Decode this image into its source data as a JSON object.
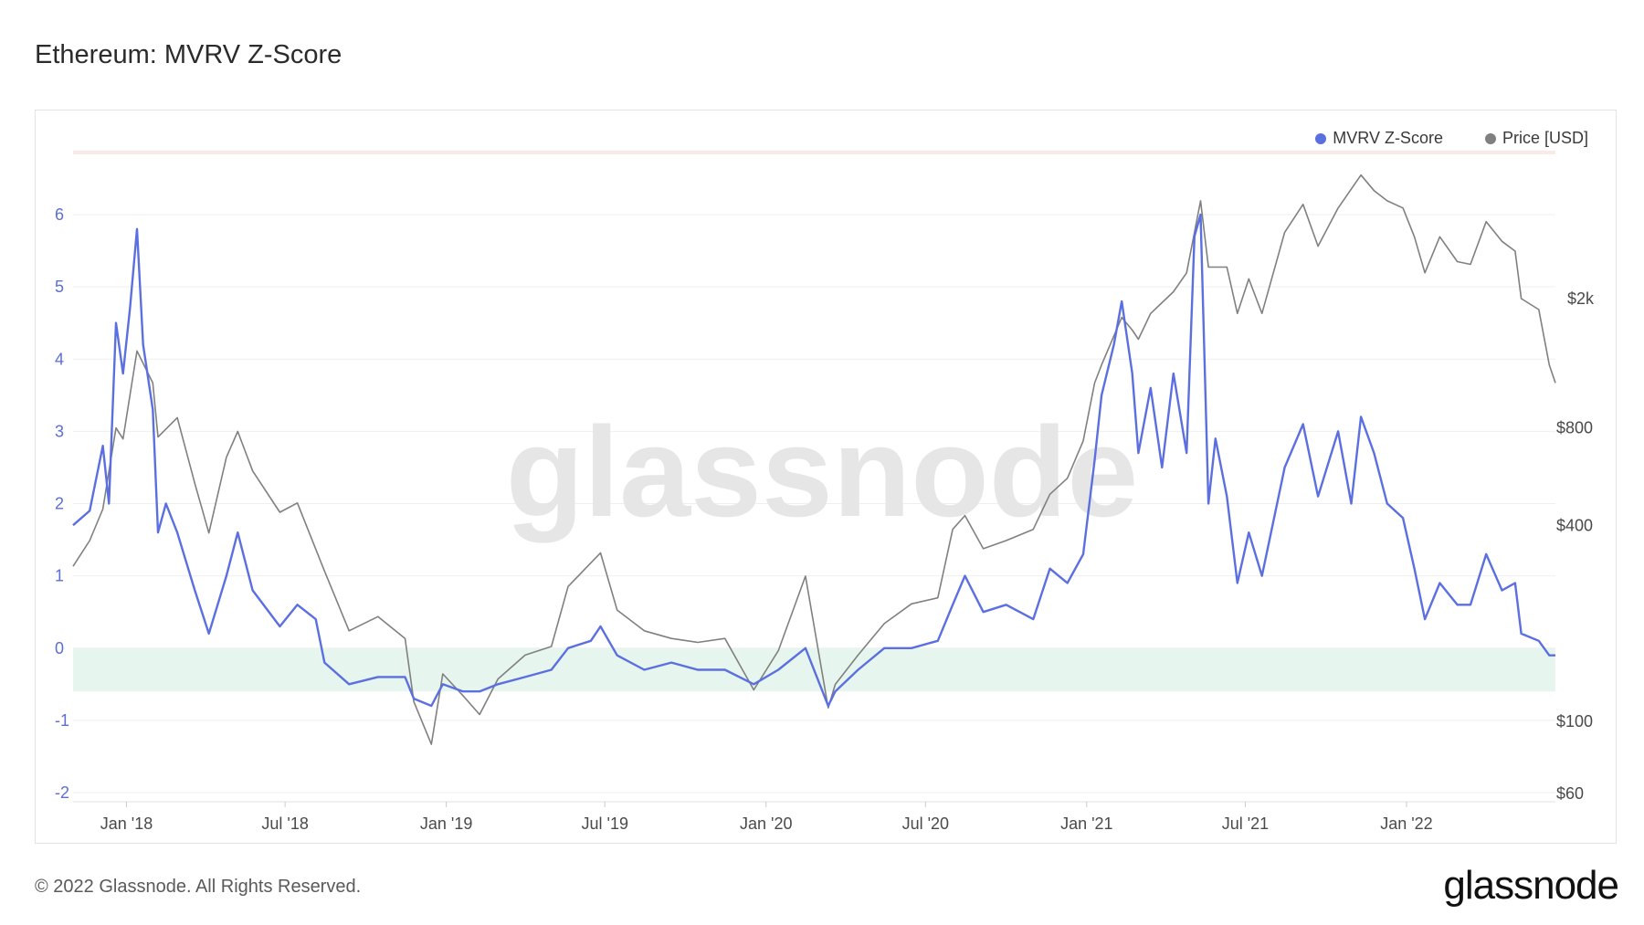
{
  "title": "Ethereum: MVRV Z-Score",
  "legend": {
    "mvrv_label": "MVRV Z-Score",
    "price_label": "Price [USD]"
  },
  "watermark": "glassnode",
  "footer": "© 2022 Glassnode. All Rights Reserved.",
  "brand": "glassnode",
  "colors": {
    "mvrv": "#5b6fe0",
    "price": "#808080",
    "green_band": "#e6f6ee",
    "red_band": "#fde8e8",
    "grid": "#efefef"
  },
  "chart_data": {
    "type": "line",
    "x_ticks": [
      "Jan '18",
      "Jul '18",
      "Jan '19",
      "Jul '19",
      "Jan '20",
      "Jul '20",
      "Jan '21",
      "Jul '21",
      "Jan '22"
    ],
    "y_left_ticks": [
      "6",
      "5",
      "4",
      "3",
      "2",
      "1",
      "0",
      "-1",
      "-2"
    ],
    "y_left_range": [
      -2,
      6
    ],
    "y_right_ticks": [
      "$2k",
      "$800",
      "$400",
      "$100",
      "$60"
    ],
    "y_right_scale": "log",
    "grid": true,
    "legend_position": "top-right",
    "green_band": [
      -0.6,
      0
    ],
    "x_range": [
      "2017-11-01",
      "2022-06-20"
    ],
    "series": [
      {
        "name": "MVRV Z-Score",
        "axis": "left",
        "points": [
          [
            "2017-11-01",
            1.7
          ],
          [
            "2017-11-20",
            1.9
          ],
          [
            "2017-12-05",
            2.8
          ],
          [
            "2017-12-12",
            2.0
          ],
          [
            "2017-12-20",
            4.5
          ],
          [
            "2017-12-28",
            3.8
          ],
          [
            "2018-01-05",
            4.7
          ],
          [
            "2018-01-13",
            5.8
          ],
          [
            "2018-01-20",
            4.2
          ],
          [
            "2018-01-31",
            3.3
          ],
          [
            "2018-02-06",
            1.6
          ],
          [
            "2018-02-15",
            2.0
          ],
          [
            "2018-02-28",
            1.6
          ],
          [
            "2018-03-20",
            0.8
          ],
          [
            "2018-04-05",
            0.2
          ],
          [
            "2018-04-25",
            1.0
          ],
          [
            "2018-05-08",
            1.6
          ],
          [
            "2018-05-25",
            0.8
          ],
          [
            "2018-06-25",
            0.3
          ],
          [
            "2018-07-15",
            0.6
          ],
          [
            "2018-08-05",
            0.4
          ],
          [
            "2018-08-15",
            -0.2
          ],
          [
            "2018-09-12",
            -0.5
          ],
          [
            "2018-10-15",
            -0.4
          ],
          [
            "2018-11-15",
            -0.4
          ],
          [
            "2018-11-25",
            -0.7
          ],
          [
            "2018-12-15",
            -0.8
          ],
          [
            "2018-12-28",
            -0.5
          ],
          [
            "2019-01-20",
            -0.6
          ],
          [
            "2019-02-08",
            -0.6
          ],
          [
            "2019-03-01",
            -0.5
          ],
          [
            "2019-04-01",
            -0.4
          ],
          [
            "2019-05-01",
            -0.3
          ],
          [
            "2019-05-20",
            0.0
          ],
          [
            "2019-06-15",
            0.1
          ],
          [
            "2019-06-26",
            0.3
          ],
          [
            "2019-07-15",
            -0.1
          ],
          [
            "2019-08-15",
            -0.3
          ],
          [
            "2019-09-15",
            -0.2
          ],
          [
            "2019-10-15",
            -0.3
          ],
          [
            "2019-11-15",
            -0.3
          ],
          [
            "2019-12-18",
            -0.5
          ],
          [
            "2020-01-15",
            -0.3
          ],
          [
            "2020-02-15",
            0.0
          ],
          [
            "2020-03-12",
            -0.8
          ],
          [
            "2020-03-20",
            -0.6
          ],
          [
            "2020-04-15",
            -0.3
          ],
          [
            "2020-05-15",
            0.0
          ],
          [
            "2020-06-15",
            0.0
          ],
          [
            "2020-07-15",
            0.1
          ],
          [
            "2020-08-01",
            0.6
          ],
          [
            "2020-08-15",
            1.0
          ],
          [
            "2020-09-05",
            0.5
          ],
          [
            "2020-10-01",
            0.6
          ],
          [
            "2020-11-01",
            0.4
          ],
          [
            "2020-11-20",
            1.1
          ],
          [
            "2020-12-10",
            0.9
          ],
          [
            "2020-12-28",
            1.3
          ],
          [
            "2021-01-10",
            2.6
          ],
          [
            "2021-01-18",
            3.5
          ],
          [
            "2021-02-01",
            4.2
          ],
          [
            "2021-02-10",
            4.8
          ],
          [
            "2021-02-22",
            3.8
          ],
          [
            "2021-03-01",
            2.7
          ],
          [
            "2021-03-15",
            3.6
          ],
          [
            "2021-03-28",
            2.5
          ],
          [
            "2021-04-10",
            3.8
          ],
          [
            "2021-04-25",
            2.7
          ],
          [
            "2021-05-04",
            5.7
          ],
          [
            "2021-05-11",
            6.0
          ],
          [
            "2021-05-20",
            2.0
          ],
          [
            "2021-05-28",
            2.9
          ],
          [
            "2021-06-10",
            2.1
          ],
          [
            "2021-06-22",
            0.9
          ],
          [
            "2021-07-05",
            1.6
          ],
          [
            "2021-07-20",
            1.0
          ],
          [
            "2021-08-15",
            2.5
          ],
          [
            "2021-09-05",
            3.1
          ],
          [
            "2021-09-22",
            2.1
          ],
          [
            "2021-10-15",
            3.0
          ],
          [
            "2021-10-30",
            2.0
          ],
          [
            "2021-11-10",
            3.2
          ],
          [
            "2021-11-25",
            2.7
          ],
          [
            "2021-12-10",
            2.0
          ],
          [
            "2021-12-28",
            1.8
          ],
          [
            "2022-01-10",
            1.1
          ],
          [
            "2022-01-22",
            0.4
          ],
          [
            "2022-02-08",
            0.9
          ],
          [
            "2022-02-28",
            0.6
          ],
          [
            "2022-03-15",
            0.6
          ],
          [
            "2022-04-02",
            1.3
          ],
          [
            "2022-04-20",
            0.8
          ],
          [
            "2022-05-05",
            0.9
          ],
          [
            "2022-05-12",
            0.2
          ],
          [
            "2022-06-01",
            0.1
          ],
          [
            "2022-06-13",
            -0.1
          ],
          [
            "2022-06-20",
            -0.1
          ]
        ]
      },
      {
        "name": "Price [USD]",
        "axis": "right",
        "points": [
          [
            "2017-11-01",
            300
          ],
          [
            "2017-11-20",
            360
          ],
          [
            "2017-12-05",
            450
          ],
          [
            "2017-12-20",
            800
          ],
          [
            "2017-12-28",
            740
          ],
          [
            "2018-01-13",
            1380
          ],
          [
            "2018-01-31",
            1100
          ],
          [
            "2018-02-06",
            750
          ],
          [
            "2018-02-28",
            860
          ],
          [
            "2018-03-20",
            540
          ],
          [
            "2018-04-05",
            380
          ],
          [
            "2018-04-25",
            650
          ],
          [
            "2018-05-08",
            780
          ],
          [
            "2018-05-25",
            590
          ],
          [
            "2018-06-25",
            440
          ],
          [
            "2018-07-15",
            470
          ],
          [
            "2018-08-15",
            290
          ],
          [
            "2018-09-12",
            190
          ],
          [
            "2018-10-15",
            210
          ],
          [
            "2018-11-15",
            180
          ],
          [
            "2018-11-25",
            115
          ],
          [
            "2018-12-15",
            85
          ],
          [
            "2018-12-28",
            140
          ],
          [
            "2019-01-20",
            120
          ],
          [
            "2019-02-08",
            105
          ],
          [
            "2019-03-01",
            135
          ],
          [
            "2019-04-01",
            160
          ],
          [
            "2019-05-01",
            170
          ],
          [
            "2019-05-20",
            260
          ],
          [
            "2019-06-26",
            330
          ],
          [
            "2019-07-15",
            220
          ],
          [
            "2019-08-15",
            190
          ],
          [
            "2019-09-15",
            180
          ],
          [
            "2019-10-15",
            175
          ],
          [
            "2019-11-15",
            180
          ],
          [
            "2019-12-18",
            125
          ],
          [
            "2020-01-15",
            165
          ],
          [
            "2020-02-15",
            280
          ],
          [
            "2020-03-12",
            110
          ],
          [
            "2020-03-20",
            130
          ],
          [
            "2020-04-15",
            160
          ],
          [
            "2020-05-15",
            200
          ],
          [
            "2020-06-15",
            230
          ],
          [
            "2020-07-15",
            240
          ],
          [
            "2020-08-01",
            390
          ],
          [
            "2020-08-15",
            430
          ],
          [
            "2020-09-05",
            340
          ],
          [
            "2020-10-01",
            360
          ],
          [
            "2020-11-01",
            390
          ],
          [
            "2020-11-20",
            500
          ],
          [
            "2020-12-10",
            560
          ],
          [
            "2020-12-28",
            730
          ],
          [
            "2021-01-10",
            1100
          ],
          [
            "2021-01-18",
            1250
          ],
          [
            "2021-02-10",
            1750
          ],
          [
            "2021-02-22",
            1600
          ],
          [
            "2021-03-01",
            1500
          ],
          [
            "2021-03-15",
            1800
          ],
          [
            "2021-04-10",
            2100
          ],
          [
            "2021-04-25",
            2400
          ],
          [
            "2021-05-11",
            4000
          ],
          [
            "2021-05-20",
            2500
          ],
          [
            "2021-06-10",
            2500
          ],
          [
            "2021-06-22",
            1800
          ],
          [
            "2021-07-05",
            2300
          ],
          [
            "2021-07-20",
            1800
          ],
          [
            "2021-08-15",
            3200
          ],
          [
            "2021-09-05",
            3900
          ],
          [
            "2021-09-22",
            2900
          ],
          [
            "2021-10-15",
            3800
          ],
          [
            "2021-11-10",
            4800
          ],
          [
            "2021-11-25",
            4300
          ],
          [
            "2021-12-10",
            4000
          ],
          [
            "2021-12-28",
            3800
          ],
          [
            "2022-01-10",
            3100
          ],
          [
            "2022-01-22",
            2400
          ],
          [
            "2022-02-08",
            3100
          ],
          [
            "2022-02-28",
            2600
          ],
          [
            "2022-03-15",
            2550
          ],
          [
            "2022-04-02",
            3450
          ],
          [
            "2022-04-20",
            3000
          ],
          [
            "2022-05-05",
            2800
          ],
          [
            "2022-05-12",
            2000
          ],
          [
            "2022-06-01",
            1850
          ],
          [
            "2022-06-13",
            1250
          ],
          [
            "2022-06-20",
            1100
          ]
        ]
      }
    ]
  }
}
